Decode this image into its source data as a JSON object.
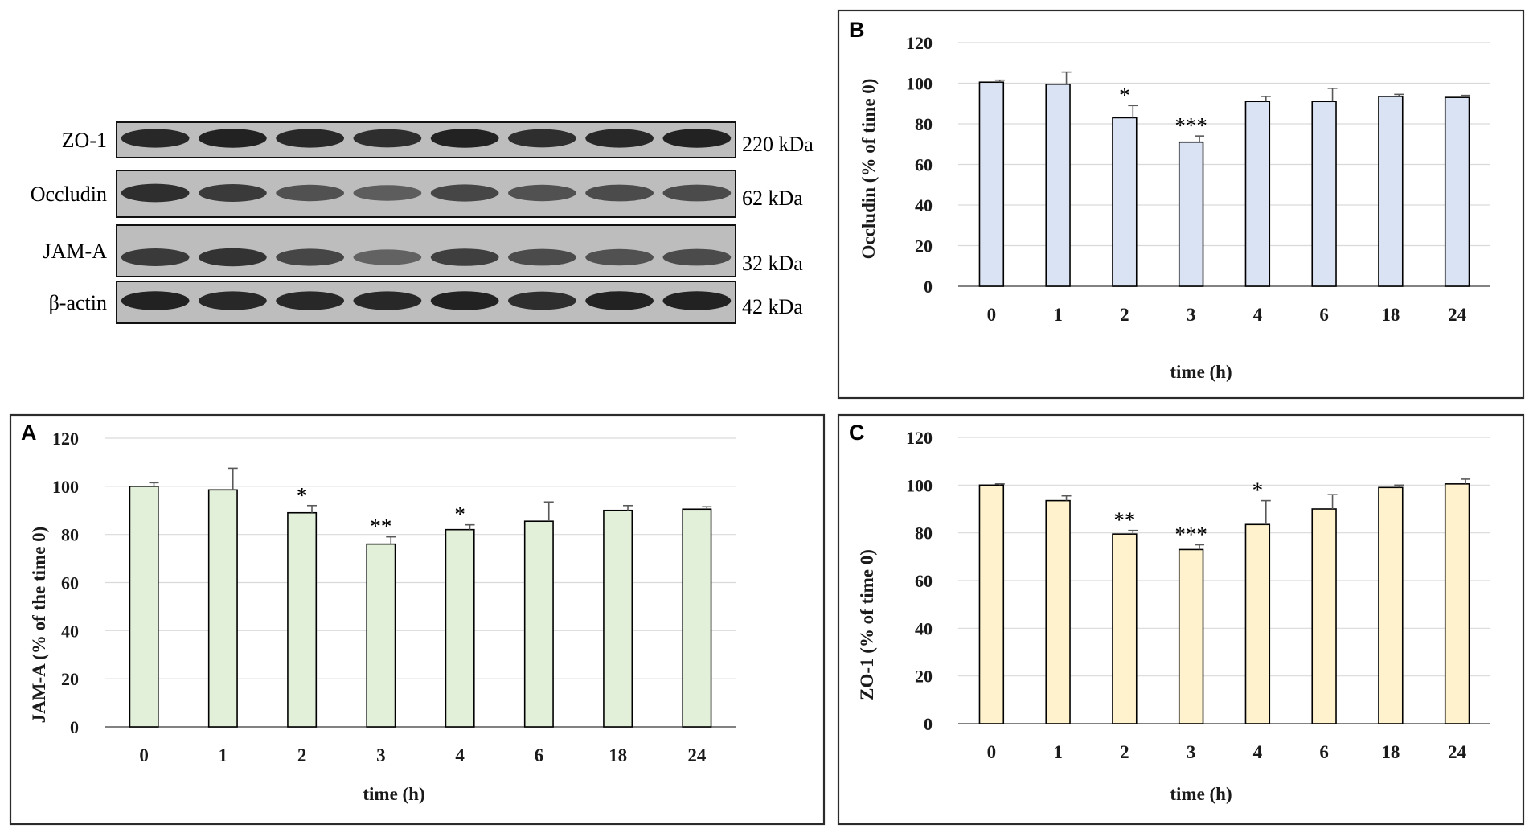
{
  "blot": {
    "strips": [
      {
        "label": "ZO-1",
        "kda": "220 kDa",
        "intensity": [
          0.9,
          0.95,
          0.9,
          0.85,
          0.95,
          0.85,
          0.9,
          0.95
        ]
      },
      {
        "label": "Occludin",
        "kda": "62 kDa",
        "intensity": [
          0.85,
          0.75,
          0.55,
          0.45,
          0.65,
          0.55,
          0.6,
          0.6
        ]
      },
      {
        "label": "JAM-A",
        "kda": "32 kDa",
        "intensity": [
          0.75,
          0.8,
          0.65,
          0.4,
          0.7,
          0.6,
          0.55,
          0.6
        ]
      },
      {
        "label": "β-actin",
        "kda": "42 kDa",
        "intensity": [
          0.95,
          0.9,
          0.9,
          0.9,
          0.95,
          0.85,
          0.95,
          0.95
        ]
      }
    ]
  },
  "chart_data": [
    {
      "panel": "A",
      "type": "bar",
      "categories": [
        "0",
        "1",
        "2",
        "3",
        "4",
        "6",
        "18",
        "24"
      ],
      "values": [
        100,
        98.5,
        89,
        76,
        82,
        85.5,
        90,
        90.5
      ],
      "errors": [
        1.5,
        9,
        3,
        3,
        2,
        8,
        2,
        1
      ],
      "significance": [
        "",
        "",
        "*",
        "**",
        "*",
        "",
        "",
        ""
      ],
      "xlabel": "time (h)",
      "ylabel": "JAM-A (% of the time 0)",
      "ylim": [
        0,
        120
      ],
      "yticks": [
        0,
        20,
        40,
        60,
        80,
        100,
        120
      ],
      "grid": true,
      "bar_color": "#e2efd9"
    },
    {
      "panel": "B",
      "type": "bar",
      "categories": [
        "0",
        "1",
        "2",
        "3",
        "4",
        "6",
        "18",
        "24"
      ],
      "values": [
        100.5,
        99.5,
        83,
        71,
        91,
        91,
        93.5,
        93
      ],
      "errors": [
        1,
        6,
        6,
        3,
        2.5,
        6.5,
        1,
        1
      ],
      "significance": [
        "",
        "",
        "*",
        "***",
        "",
        "",
        "",
        ""
      ],
      "xlabel": "time (h)",
      "ylabel": "Occludin (% of  time 0)",
      "ylim": [
        0,
        120
      ],
      "yticks": [
        0,
        20,
        40,
        60,
        80,
        100,
        120
      ],
      "grid": true,
      "bar_color": "#dae3f3"
    },
    {
      "panel": "C",
      "type": "bar",
      "categories": [
        "0",
        "1",
        "2",
        "3",
        "4",
        "6",
        "18",
        "24"
      ],
      "values": [
        100,
        93.5,
        79.5,
        73,
        83.5,
        90,
        99,
        100.5
      ],
      "errors": [
        0.5,
        2,
        1.5,
        2,
        10,
        6,
        1,
        2
      ],
      "significance": [
        "",
        "",
        "**",
        "***",
        "*",
        "",
        "",
        ""
      ],
      "xlabel": "time (h)",
      "ylabel": "ZO-1   (% of time 0)",
      "ylim": [
        0,
        120
      ],
      "yticks": [
        0,
        20,
        40,
        60,
        80,
        100,
        120
      ],
      "grid": true,
      "bar_color": "#fff2cc"
    }
  ]
}
